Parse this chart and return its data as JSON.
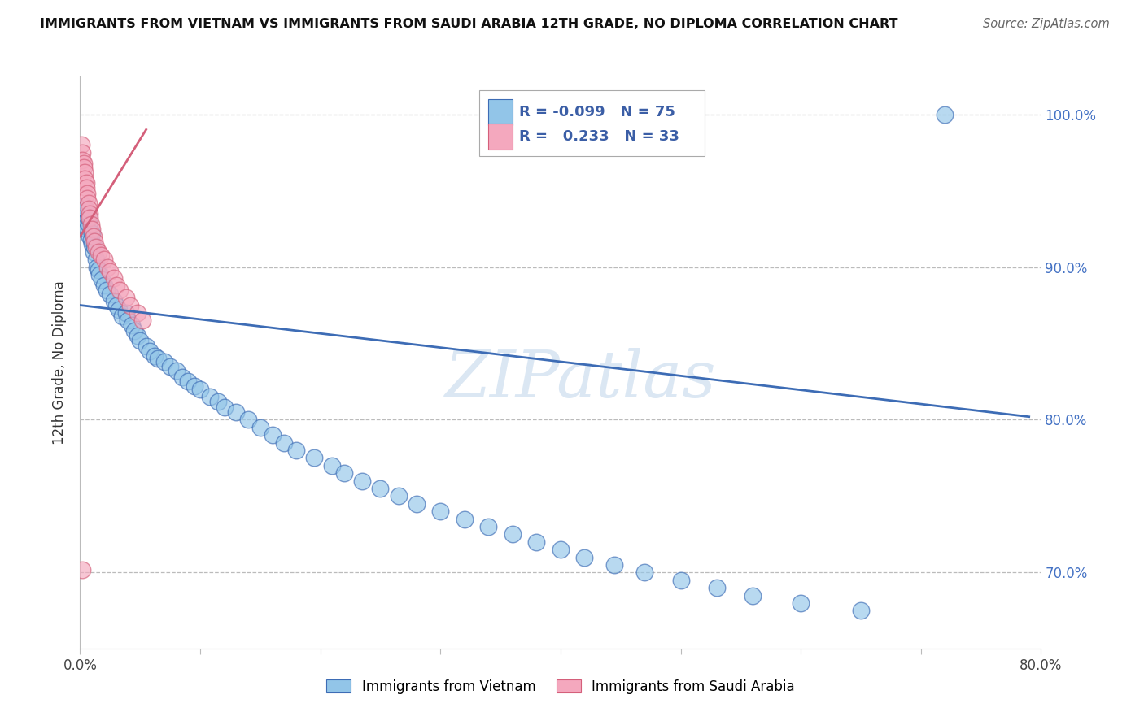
{
  "title": "IMMIGRANTS FROM VIETNAM VS IMMIGRANTS FROM SAUDI ARABIA 12TH GRADE, NO DIPLOMA CORRELATION CHART",
  "source": "Source: ZipAtlas.com",
  "ylabel": "12th Grade, No Diploma",
  "xlim": [
    0.0,
    0.8
  ],
  "ylim": [
    0.65,
    1.025
  ],
  "x_ticks": [
    0.0,
    0.1,
    0.2,
    0.3,
    0.4,
    0.5,
    0.6,
    0.7,
    0.8
  ],
  "x_tick_labels": [
    "0.0%",
    "",
    "",
    "",
    "",
    "",
    "",
    "",
    "80.0%"
  ],
  "y_ticks": [
    0.7,
    0.8,
    0.9,
    1.0
  ],
  "y_tick_labels": [
    "70.0%",
    "80.0%",
    "90.0%",
    "100.0%"
  ],
  "legend_labels": [
    "Immigrants from Vietnam",
    "Immigrants from Saudi Arabia"
  ],
  "R_vietnam": -0.099,
  "N_vietnam": 75,
  "R_saudi": 0.233,
  "N_saudi": 33,
  "vietnam_color": "#92C5E8",
  "saudi_color": "#F4A8BE",
  "vietnam_line_color": "#3D6CB5",
  "saudi_line_color": "#D45F7A",
  "watermark": "ZIPatlas",
  "vietnam_x": [
    0.002,
    0.003,
    0.004,
    0.004,
    0.005,
    0.005,
    0.006,
    0.007,
    0.007,
    0.008,
    0.009,
    0.01,
    0.01,
    0.011,
    0.012,
    0.013,
    0.014,
    0.015,
    0.016,
    0.018,
    0.02,
    0.022,
    0.025,
    0.028,
    0.03,
    0.032,
    0.035,
    0.038,
    0.04,
    0.043,
    0.045,
    0.048,
    0.05,
    0.055,
    0.058,
    0.062,
    0.065,
    0.07,
    0.075,
    0.08,
    0.085,
    0.09,
    0.095,
    0.1,
    0.108,
    0.115,
    0.12,
    0.13,
    0.14,
    0.15,
    0.16,
    0.17,
    0.18,
    0.195,
    0.21,
    0.22,
    0.235,
    0.25,
    0.265,
    0.28,
    0.3,
    0.32,
    0.34,
    0.36,
    0.38,
    0.4,
    0.42,
    0.445,
    0.47,
    0.5,
    0.53,
    0.56,
    0.6,
    0.65,
    0.72
  ],
  "vietnam_y": [
    0.935,
    0.94,
    0.933,
    0.938,
    0.93,
    0.927,
    0.925,
    0.928,
    0.932,
    0.92,
    0.918,
    0.922,
    0.915,
    0.91,
    0.913,
    0.905,
    0.9,
    0.898,
    0.895,
    0.892,
    0.888,
    0.885,
    0.882,
    0.878,
    0.875,
    0.872,
    0.868,
    0.87,
    0.865,
    0.862,
    0.858,
    0.855,
    0.852,
    0.848,
    0.845,
    0.842,
    0.84,
    0.838,
    0.835,
    0.832,
    0.828,
    0.825,
    0.822,
    0.82,
    0.815,
    0.812,
    0.808,
    0.805,
    0.8,
    0.795,
    0.79,
    0.785,
    0.78,
    0.775,
    0.77,
    0.765,
    0.76,
    0.755,
    0.75,
    0.745,
    0.74,
    0.735,
    0.73,
    0.725,
    0.72,
    0.715,
    0.71,
    0.705,
    0.7,
    0.695,
    0.69,
    0.685,
    0.68,
    0.675,
    1.0
  ],
  "saudi_x": [
    0.001,
    0.002,
    0.002,
    0.003,
    0.003,
    0.004,
    0.004,
    0.005,
    0.005,
    0.006,
    0.006,
    0.007,
    0.007,
    0.008,
    0.008,
    0.009,
    0.01,
    0.011,
    0.012,
    0.013,
    0.015,
    0.017,
    0.02,
    0.023,
    0.025,
    0.028,
    0.03,
    0.033,
    0.038,
    0.042,
    0.048,
    0.052,
    0.002
  ],
  "saudi_y": [
    0.98,
    0.975,
    0.97,
    0.968,
    0.965,
    0.962,
    0.958,
    0.955,
    0.952,
    0.948,
    0.945,
    0.942,
    0.938,
    0.935,
    0.932,
    0.928,
    0.925,
    0.92,
    0.917,
    0.913,
    0.91,
    0.908,
    0.905,
    0.9,
    0.897,
    0.893,
    0.888,
    0.885,
    0.88,
    0.875,
    0.87,
    0.865,
    0.702
  ],
  "viet_line_x0": 0.0,
  "viet_line_x1": 0.79,
  "viet_line_y0": 0.875,
  "viet_line_y1": 0.802,
  "saudi_line_x0": 0.0,
  "saudi_line_x1": 0.055,
  "saudi_line_y0": 0.92,
  "saudi_line_y1": 0.99
}
